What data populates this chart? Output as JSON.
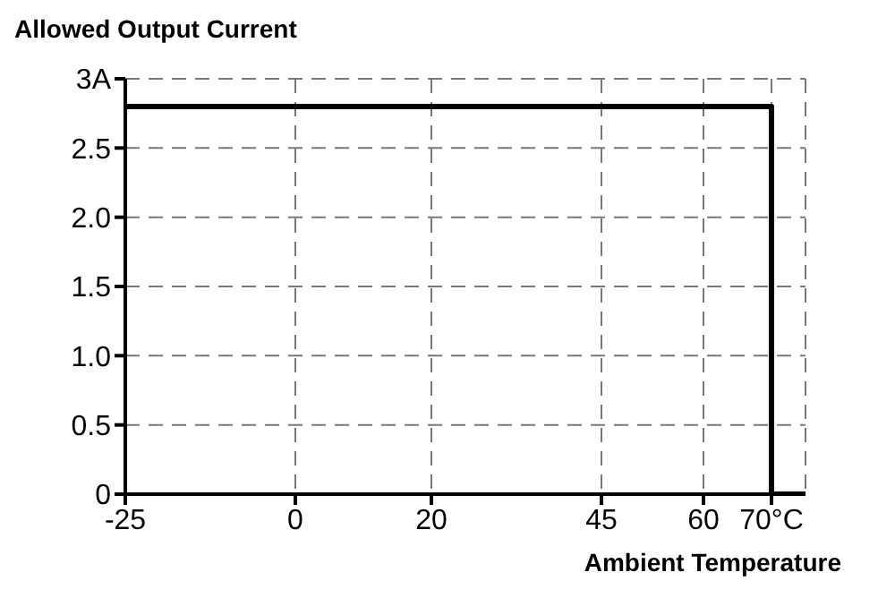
{
  "chart_data": {
    "type": "line",
    "title": "Allowed Output Current",
    "xlabel": "Ambient Temperature",
    "x": [
      -25,
      70,
      70,
      75
    ],
    "series": [
      {
        "color": "#000000",
        "values": [
          2.8,
          2.8,
          0,
          0
        ]
      }
    ],
    "xlim": [
      -25,
      75
    ],
    "xticks": [
      -25,
      0,
      20,
      45,
      60,
      {
        "value": 70,
        "label": "70°C"
      }
    ],
    "ylim": [
      0,
      3
    ],
    "yticks": [
      0,
      0.5,
      {
        "value": 1,
        "label": "1.0"
      },
      1.5,
      {
        "value": 2,
        "label": "2.0"
      },
      2.5,
      {
        "value": 3,
        "label": "3A"
      }
    ],
    "grid": true,
    "marker": "none",
    "line_style": "solid",
    "legend": false
  }
}
